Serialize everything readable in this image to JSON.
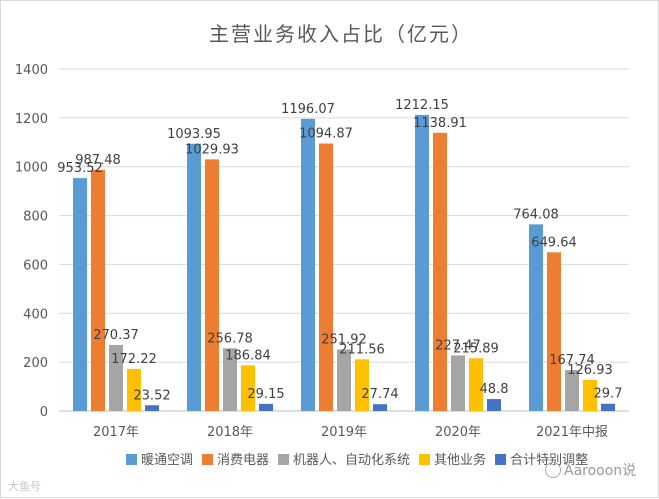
{
  "chart_data": {
    "type": "bar",
    "title": "主营业务收入占比（亿元）",
    "xlabel": "",
    "ylabel": "",
    "ylim": [
      0,
      1400
    ],
    "yticks": [
      0,
      200,
      400,
      600,
      800,
      1000,
      1200,
      1400
    ],
    "grid": true,
    "legend_position": "bottom",
    "categories": [
      "2017年",
      "2018年",
      "2019年",
      "2020年",
      "2021年中报"
    ],
    "series": [
      {
        "name": "暖通空调",
        "color": "#5b9bd5",
        "values": [
          953.52,
          1093.95,
          1196.07,
          1212.15,
          764.08
        ],
        "labels": [
          "953.52",
          "1093.95",
          "1196.07",
          "1212.15",
          "764.08"
        ]
      },
      {
        "name": "消费电器",
        "color": "#ed7d31",
        "values": [
          987.48,
          1029.93,
          1094.87,
          1138.91,
          649.64
        ],
        "labels": [
          "987.48",
          "1029.93",
          "1094.87",
          "1138.91",
          "649.64"
        ]
      },
      {
        "name": "机器人、自动化系统",
        "color": "#a5a5a5",
        "values": [
          270.37,
          256.78,
          251.92,
          227.47,
          167.74
        ],
        "labels": [
          "270.37",
          "256.78",
          "251.92",
          "227.47",
          "167.74"
        ]
      },
      {
        "name": "其他业务",
        "color": "#ffc000",
        "values": [
          172.22,
          186.84,
          211.56,
          215.89,
          126.93
        ],
        "labels": [
          "172.22",
          "186.84",
          "211.56",
          "215.89",
          "126.93"
        ]
      },
      {
        "name": "合计特别调整",
        "color": "#4472c4",
        "values": [
          23.52,
          29.15,
          27.74,
          48.8,
          29.7
        ],
        "labels": [
          "23.52",
          "29.15",
          "27.74",
          "48.8",
          "29.7"
        ]
      }
    ]
  },
  "watermarks": {
    "left": "大鱼号",
    "right": "Aarooon说"
  }
}
